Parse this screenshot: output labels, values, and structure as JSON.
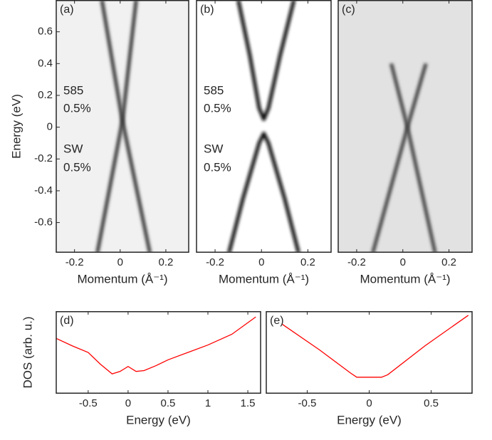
{
  "chart_data": [
    {
      "type": "heatmap",
      "panel_label": "(a)",
      "ylabel": "Energy (eV)",
      "xlabel": "Momentum (Å⁻¹)",
      "xlim": [
        -0.28,
        0.3
      ],
      "ylim": [
        -0.79,
        0.8
      ],
      "xticks": [
        -0.2,
        0,
        0.2
      ],
      "yticks": [
        -0.6,
        -0.4,
        -0.2,
        0,
        0.2,
        0.4,
        0.6
      ],
      "background": "#f1f1f1",
      "annotations": [
        "585",
        "0.5%",
        "SW",
        "0.5%"
      ],
      "series": [
        {
          "color": "#3a3a3a",
          "x": [
            -0.08,
            0.01,
            0.13
          ],
          "y": [
            0.8,
            0.04,
            -0.79
          ]
        },
        {
          "color": "#3a3a3a",
          "x": [
            0.07,
            0.01,
            -0.1
          ],
          "y": [
            0.8,
            0.04,
            -0.79
          ]
        }
      ]
    },
    {
      "type": "heatmap",
      "panel_label": "(b)",
      "xlabel": "Momentum (Å⁻¹)",
      "xlim": [
        -0.28,
        0.3
      ],
      "ylim": [
        -0.79,
        0.8
      ],
      "xticks": [
        -0.2,
        0,
        0.2
      ],
      "background": "#ffffff",
      "annotations": [
        "585",
        "0.5%",
        "SW",
        "0.5%"
      ],
      "series": [
        {
          "color": "#111111",
          "x": [
            -0.1,
            -0.05,
            -0.01,
            0.01,
            0.03,
            0.08,
            0.14
          ],
          "y": [
            0.8,
            0.45,
            0.12,
            0.05,
            0.12,
            0.45,
            0.8
          ]
        },
        {
          "color": "#111111",
          "x": [
            -0.14,
            -0.08,
            -0.01,
            0.01,
            0.03,
            0.1,
            0.16
          ],
          "y": [
            -0.79,
            -0.45,
            -0.1,
            -0.04,
            -0.1,
            -0.45,
            -0.79
          ]
        }
      ]
    },
    {
      "type": "heatmap",
      "panel_label": "(c)",
      "xlabel": "Momentum (Å⁻¹)",
      "xlim": [
        -0.28,
        0.3
      ],
      "ylim": [
        -0.79,
        0.8
      ],
      "xticks": [
        -0.2,
        0,
        0.2
      ],
      "background": "#e2e2e2",
      "series": [
        {
          "color": "#444444",
          "x": [
            -0.05,
            0.02,
            0.14
          ],
          "y": [
            0.4,
            0.0,
            -0.79
          ]
        },
        {
          "color": "#444444",
          "x": [
            0.1,
            0.02,
            -0.13
          ],
          "y": [
            0.4,
            0.0,
            -0.79
          ]
        }
      ]
    },
    {
      "type": "line",
      "panel_label": "(d)",
      "ylabel": "DOS (arb. u.)",
      "xlabel": "Energy (eV)",
      "xlim": [
        -0.9,
        1.66
      ],
      "ylim": [
        0,
        1
      ],
      "xticks": [
        -0.5,
        0,
        0.5,
        1,
        1.5
      ],
      "color": "#ff0000",
      "x": [
        -0.9,
        -0.7,
        -0.5,
        -0.35,
        -0.2,
        -0.1,
        0,
        0.1,
        0.2,
        0.35,
        0.5,
        0.75,
        1,
        1.3,
        1.6
      ],
      "values": [
        0.67,
        0.58,
        0.5,
        0.36,
        0.24,
        0.27,
        0.33,
        0.27,
        0.28,
        0.34,
        0.41,
        0.5,
        0.59,
        0.72,
        0.93
      ]
    },
    {
      "type": "line",
      "panel_label": "(e)",
      "xlabel": "Energy (eV)",
      "xlim": [
        -0.83,
        0.83
      ],
      "ylim": [
        0,
        1
      ],
      "xticks": [
        -0.5,
        0,
        0.5
      ],
      "color": "#ff0000",
      "x": [
        -0.7,
        -0.4,
        -0.15,
        -0.1,
        0.1,
        0.15,
        0.45,
        0.8
      ],
      "values": [
        0.84,
        0.53,
        0.25,
        0.2,
        0.2,
        0.23,
        0.58,
        0.95
      ]
    }
  ]
}
